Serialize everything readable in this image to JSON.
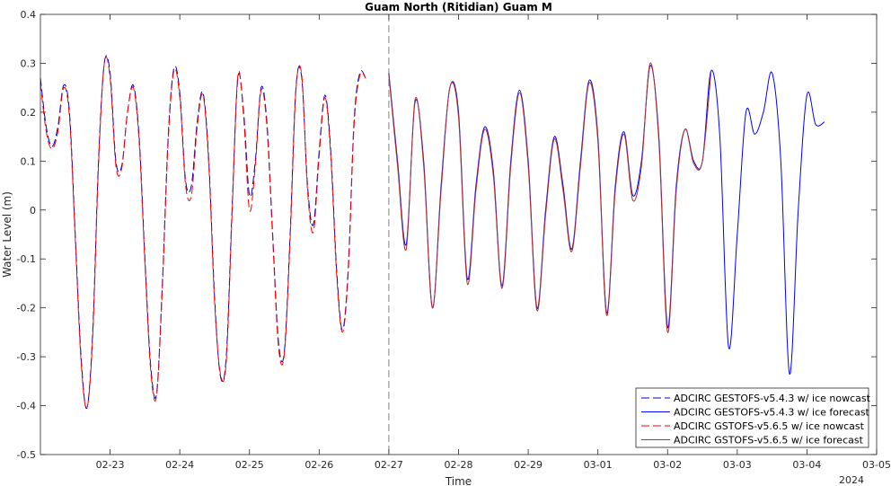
{
  "chart_data": {
    "type": "line",
    "title": "Guam North (Ritidian) Guam M",
    "xlabel": "Time",
    "ylabel": "Water Level (m)",
    "year_label": "2024",
    "xlim": [
      "2024-02-22T00:00",
      "2024-03-05T00:00"
    ],
    "ylim": [
      -0.5,
      0.4
    ],
    "yticks": [
      -0.5,
      -0.4,
      -0.3,
      -0.2,
      -0.1,
      0,
      0.1,
      0.2,
      0.3,
      0.4
    ],
    "ytick_labels": [
      "-0.5",
      "-0.4",
      "-0.3",
      "-0.2",
      "-0.1",
      "0",
      "0.1",
      "0.2",
      "0.3",
      "0.4"
    ],
    "xticks": [
      "2024-02-23",
      "2024-02-24",
      "2024-02-25",
      "2024-02-26",
      "2024-02-27",
      "2024-02-28",
      "2024-02-29",
      "2024-03-01",
      "2024-03-02",
      "2024-03-03",
      "2024-03-04",
      "2024-03-05"
    ],
    "xtick_labels": [
      "02-23",
      "02-24",
      "02-25",
      "02-26",
      "02-27",
      "02-28",
      "02-29",
      "03-01",
      "03-02",
      "03-03",
      "03-04",
      "03-05"
    ],
    "nowcast_forecast_divider": "2024-02-27T00:00",
    "grid": false,
    "legend_position": "bottom-right",
    "series": [
      {
        "name": "ADCIRC GESTOFS-v5.4.3 w/ ice nowcast",
        "color": "#0000cc",
        "style": "dashed",
        "points": [
          [
            "2024-02-22T00:00",
            0.27
          ],
          [
            "2024-02-22T02:00",
            0.17
          ],
          [
            "2024-02-22T04:00",
            0.13
          ],
          [
            "2024-02-22T06:00",
            0.17
          ],
          [
            "2024-02-22T08:00",
            0.255
          ],
          [
            "2024-02-22T10:00",
            0.2
          ],
          [
            "2024-02-22T12:00",
            -0.05
          ],
          [
            "2024-02-22T14:00",
            -0.3
          ],
          [
            "2024-02-22T16:00",
            -0.405
          ],
          [
            "2024-02-22T18:00",
            -0.25
          ],
          [
            "2024-02-22T20:00",
            0.1
          ],
          [
            "2024-02-22T22:00",
            0.3
          ],
          [
            "2024-02-23T00:00",
            0.28
          ],
          [
            "2024-02-23T02:00",
            0.1
          ],
          [
            "2024-02-23T04:00",
            0.09
          ],
          [
            "2024-02-23T06:00",
            0.2
          ],
          [
            "2024-02-23T08:00",
            0.255
          ],
          [
            "2024-02-23T10:00",
            0.15
          ],
          [
            "2024-02-23T12:00",
            -0.1
          ],
          [
            "2024-02-23T14:00",
            -0.32
          ],
          [
            "2024-02-23T16:00",
            -0.375
          ],
          [
            "2024-02-23T18:00",
            -0.15
          ],
          [
            "2024-02-23T20:00",
            0.15
          ],
          [
            "2024-02-23T22:00",
            0.29
          ],
          [
            "2024-02-24T00:00",
            0.24
          ],
          [
            "2024-02-24T02:00",
            0.06
          ],
          [
            "2024-02-24T04:00",
            0.05
          ],
          [
            "2024-02-24T06:00",
            0.18
          ],
          [
            "2024-02-24T08:00",
            0.24
          ],
          [
            "2024-02-24T10:00",
            0.1
          ],
          [
            "2024-02-24T12:00",
            -0.18
          ],
          [
            "2024-02-24T14:00",
            -0.34
          ],
          [
            "2024-02-24T16:00",
            -0.3
          ],
          [
            "2024-02-24T18:00",
            0.0
          ],
          [
            "2024-02-24T20:00",
            0.27
          ],
          [
            "2024-02-24T22:00",
            0.2
          ],
          [
            "2024-02-25T00:00",
            0.03
          ],
          [
            "2024-02-25T02:00",
            0.1
          ],
          [
            "2024-02-25T04:00",
            0.25
          ],
          [
            "2024-02-25T06:00",
            0.18
          ],
          [
            "2024-02-25T08:00",
            -0.05
          ],
          [
            "2024-02-25T10:00",
            -0.27
          ],
          [
            "2024-02-25T12:00",
            -0.29
          ],
          [
            "2024-02-25T14:00",
            -0.05
          ],
          [
            "2024-02-25T16:00",
            0.25
          ],
          [
            "2024-02-25T18:00",
            0.27
          ],
          [
            "2024-02-25T20:00",
            0.05
          ],
          [
            "2024-02-25T22:00",
            -0.03
          ],
          [
            "2024-02-26T00:00",
            0.12
          ],
          [
            "2024-02-26T02:00",
            0.235
          ],
          [
            "2024-02-26T04:00",
            0.12
          ],
          [
            "2024-02-26T06:00",
            -0.12
          ],
          [
            "2024-02-26T08:00",
            -0.245
          ],
          [
            "2024-02-26T10:00",
            -0.12
          ],
          [
            "2024-02-26T12:00",
            0.18
          ],
          [
            "2024-02-26T14:00",
            0.28
          ],
          [
            "2024-02-26T16:00",
            0.27
          ]
        ]
      },
      {
        "name": "ADCIRC GESTOFS-v5.4.3 w/ ice forecast",
        "color": "#0000ff",
        "style": "solid",
        "points": [
          [
            "2024-02-27T00:00",
            0.28
          ],
          [
            "2024-02-27T03:00",
            0.1
          ],
          [
            "2024-02-27T06:00",
            -0.07
          ],
          [
            "2024-02-27T09:00",
            0.22
          ],
          [
            "2024-02-27T12:00",
            0.1
          ],
          [
            "2024-02-27T15:00",
            -0.2
          ],
          [
            "2024-02-27T18:00",
            0.05
          ],
          [
            "2024-02-27T21:00",
            0.25
          ],
          [
            "2024-02-28T00:00",
            0.2
          ],
          [
            "2024-02-28T03:00",
            -0.14
          ],
          [
            "2024-02-28T06:00",
            0.05
          ],
          [
            "2024-02-28T09:00",
            0.17
          ],
          [
            "2024-02-28T12:00",
            0.08
          ],
          [
            "2024-02-28T15:00",
            -0.155
          ],
          [
            "2024-02-28T18:00",
            0.1
          ],
          [
            "2024-02-28T21:00",
            0.245
          ],
          [
            "2024-02-29T00:00",
            0.1
          ],
          [
            "2024-02-29T03:00",
            -0.2
          ],
          [
            "2024-02-29T06:00",
            0.0
          ],
          [
            "2024-02-29T09:00",
            0.15
          ],
          [
            "2024-02-29T12:00",
            0.05
          ],
          [
            "2024-02-29T15:00",
            -0.08
          ],
          [
            "2024-02-29T18:00",
            0.1
          ],
          [
            "2024-02-29T21:00",
            0.265
          ],
          [
            "2024-03-01T00:00",
            0.15
          ],
          [
            "2024-03-01T03:00",
            -0.21
          ],
          [
            "2024-03-01T06:00",
            0.05
          ],
          [
            "2024-03-01T09:00",
            0.16
          ],
          [
            "2024-03-01T12:00",
            0.03
          ],
          [
            "2024-03-01T15:00",
            0.1
          ],
          [
            "2024-03-01T18:00",
            0.295
          ],
          [
            "2024-03-01T21:00",
            0.15
          ],
          [
            "2024-03-02T00:00",
            -0.24
          ],
          [
            "2024-03-02T03:00",
            0.05
          ],
          [
            "2024-03-02T06:00",
            0.165
          ],
          [
            "2024-03-02T09:00",
            0.1
          ],
          [
            "2024-03-02T12:00",
            0.1
          ],
          [
            "2024-03-02T15:00",
            0.285
          ],
          [
            "2024-03-02T18:00",
            0.15
          ],
          [
            "2024-03-02T21:00",
            -0.28
          ],
          [
            "2024-03-03T00:00",
            -0.05
          ],
          [
            "2024-03-03T03:00",
            0.2
          ],
          [
            "2024-03-03T06:00",
            0.155
          ],
          [
            "2024-03-03T09:00",
            0.2
          ],
          [
            "2024-03-03T12:00",
            0.28
          ],
          [
            "2024-03-03T15:00",
            0.1
          ],
          [
            "2024-03-03T18:00",
            -0.335
          ],
          [
            "2024-03-03T21:00",
            0.0
          ],
          [
            "2024-03-04T00:00",
            0.235
          ],
          [
            "2024-03-04T03:00",
            0.175
          ],
          [
            "2024-03-04T06:00",
            0.18
          ]
        ]
      },
      {
        "name": "ADCIRC GSTOFS-v5.6.5 w/ ice nowcast",
        "color": "#ff0000",
        "style": "dashed",
        "points": [
          [
            "2024-02-22T00:00",
            0.26
          ],
          [
            "2024-02-22T02:00",
            0.16
          ],
          [
            "2024-02-22T04:00",
            0.125
          ],
          [
            "2024-02-22T06:00",
            0.16
          ],
          [
            "2024-02-22T08:00",
            0.25
          ],
          [
            "2024-02-22T10:00",
            0.19
          ],
          [
            "2024-02-22T12:00",
            -0.06
          ],
          [
            "2024-02-22T14:00",
            -0.31
          ],
          [
            "2024-02-22T16:00",
            -0.405
          ],
          [
            "2024-02-22T18:00",
            -0.26
          ],
          [
            "2024-02-22T20:00",
            0.09
          ],
          [
            "2024-02-22T22:00",
            0.3
          ],
          [
            "2024-02-23T00:00",
            0.27
          ],
          [
            "2024-02-23T02:00",
            0.09
          ],
          [
            "2024-02-23T04:00",
            0.085
          ],
          [
            "2024-02-23T06:00",
            0.2
          ],
          [
            "2024-02-23T08:00",
            0.25
          ],
          [
            "2024-02-23T10:00",
            0.14
          ],
          [
            "2024-02-23T12:00",
            -0.11
          ],
          [
            "2024-02-23T14:00",
            -0.33
          ],
          [
            "2024-02-23T16:00",
            -0.38
          ],
          [
            "2024-02-23T18:00",
            -0.16
          ],
          [
            "2024-02-23T20:00",
            0.14
          ],
          [
            "2024-02-23T22:00",
            0.285
          ],
          [
            "2024-02-24T00:00",
            0.23
          ],
          [
            "2024-02-24T02:00",
            0.05
          ],
          [
            "2024-02-24T04:00",
            0.03
          ],
          [
            "2024-02-24T06:00",
            0.17
          ],
          [
            "2024-02-24T08:00",
            0.235
          ],
          [
            "2024-02-24T10:00",
            0.09
          ],
          [
            "2024-02-24T12:00",
            -0.19
          ],
          [
            "2024-02-24T14:00",
            -0.335
          ],
          [
            "2024-02-24T16:00",
            -0.31
          ],
          [
            "2024-02-24T18:00",
            -0.01
          ],
          [
            "2024-02-24T20:00",
            0.275
          ],
          [
            "2024-02-24T22:00",
            0.19
          ],
          [
            "2024-02-25T00:00",
            0.0
          ],
          [
            "2024-02-25T02:00",
            0.09
          ],
          [
            "2024-02-25T04:00",
            0.245
          ],
          [
            "2024-02-25T06:00",
            0.17
          ],
          [
            "2024-02-25T08:00",
            -0.06
          ],
          [
            "2024-02-25T10:00",
            -0.28
          ],
          [
            "2024-02-25T12:00",
            -0.295
          ],
          [
            "2024-02-25T14:00",
            -0.06
          ],
          [
            "2024-02-25T16:00",
            0.245
          ],
          [
            "2024-02-25T18:00",
            0.275
          ],
          [
            "2024-02-25T20:00",
            0.04
          ],
          [
            "2024-02-25T22:00",
            -0.045
          ],
          [
            "2024-02-26T00:00",
            0.11
          ],
          [
            "2024-02-26T02:00",
            0.23
          ],
          [
            "2024-02-26T04:00",
            0.11
          ],
          [
            "2024-02-26T06:00",
            -0.13
          ],
          [
            "2024-02-26T08:00",
            -0.25
          ],
          [
            "2024-02-26T10:00",
            -0.13
          ],
          [
            "2024-02-26T12:00",
            0.17
          ],
          [
            "2024-02-26T14:00",
            0.275
          ],
          [
            "2024-02-26T16:00",
            0.27
          ]
        ]
      },
      {
        "name": "ADCIRC GSTOFS-v5.6.5 w/ ice forecast",
        "color": "#b03030",
        "style": "solid",
        "points": [
          [
            "2024-02-27T00:00",
            0.275
          ],
          [
            "2024-02-27T03:00",
            0.09
          ],
          [
            "2024-02-27T06:00",
            -0.08
          ],
          [
            "2024-02-27T09:00",
            0.225
          ],
          [
            "2024-02-27T12:00",
            0.09
          ],
          [
            "2024-02-27T15:00",
            -0.2
          ],
          [
            "2024-02-27T18:00",
            0.04
          ],
          [
            "2024-02-27T21:00",
            0.25
          ],
          [
            "2024-02-28T00:00",
            0.19
          ],
          [
            "2024-02-28T03:00",
            -0.15
          ],
          [
            "2024-02-28T06:00",
            0.04
          ],
          [
            "2024-02-28T09:00",
            0.165
          ],
          [
            "2024-02-28T12:00",
            0.07
          ],
          [
            "2024-02-28T15:00",
            -0.16
          ],
          [
            "2024-02-28T18:00",
            0.09
          ],
          [
            "2024-02-28T21:00",
            0.24
          ],
          [
            "2024-02-29T00:00",
            0.09
          ],
          [
            "2024-02-29T03:00",
            -0.205
          ],
          [
            "2024-02-29T06:00",
            -0.01
          ],
          [
            "2024-02-29T09:00",
            0.145
          ],
          [
            "2024-02-29T12:00",
            0.04
          ],
          [
            "2024-02-29T15:00",
            -0.085
          ],
          [
            "2024-02-29T18:00",
            0.09
          ],
          [
            "2024-02-29T21:00",
            0.26
          ],
          [
            "2024-03-01T00:00",
            0.14
          ],
          [
            "2024-03-01T03:00",
            -0.215
          ],
          [
            "2024-03-01T06:00",
            0.04
          ],
          [
            "2024-03-01T09:00",
            0.155
          ],
          [
            "2024-03-01T12:00",
            0.02
          ],
          [
            "2024-03-01T15:00",
            0.09
          ],
          [
            "2024-03-01T18:00",
            0.3
          ],
          [
            "2024-03-01T21:00",
            0.14
          ],
          [
            "2024-03-02T00:00",
            -0.25
          ],
          [
            "2024-03-02T03:00",
            0.04
          ],
          [
            "2024-03-02T06:00",
            0.165
          ],
          [
            "2024-03-02T09:00",
            0.095
          ],
          [
            "2024-03-02T12:00",
            0.1
          ],
          [
            "2024-03-02T15:00",
            0.285
          ]
        ]
      }
    ]
  }
}
